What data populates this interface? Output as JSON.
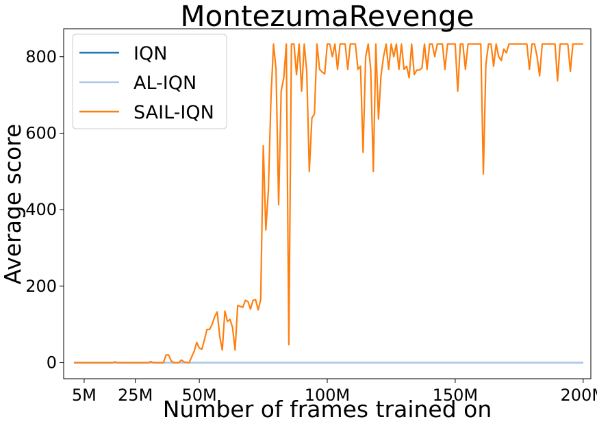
{
  "chart_data": {
    "type": "line",
    "title": "MontezumaRevenge",
    "xlabel": "Number of frames trained on",
    "ylabel": "Average score",
    "xlim": [
      -3,
      203
    ],
    "ylim": [
      -42,
      873
    ],
    "x_ticks": [
      {
        "value": 5,
        "label": "5M"
      },
      {
        "value": 25,
        "label": "25M"
      },
      {
        "value": 50,
        "label": "50M"
      },
      {
        "value": 100,
        "label": "100M"
      },
      {
        "value": 150,
        "label": "150M"
      },
      {
        "value": 200,
        "label": "200M"
      }
    ],
    "y_ticks": [
      {
        "value": 0,
        "label": "0"
      },
      {
        "value": 200,
        "label": "200"
      },
      {
        "value": 400,
        "label": "400"
      },
      {
        "value": 600,
        "label": "600"
      },
      {
        "value": 800,
        "label": "800"
      }
    ],
    "grid": false,
    "legend_position": "top-left",
    "series": [
      {
        "name": "IQN",
        "color": "#1f77b4",
        "points": [
          [
            1,
            0
          ],
          [
            200,
            0
          ]
        ]
      },
      {
        "name": "AL-IQN",
        "color": "#aec7e8",
        "points": [
          [
            1,
            0
          ],
          [
            200,
            0
          ]
        ]
      },
      {
        "name": "SAIL-IQN",
        "color": "#ff7f0e",
        "points": [
          [
            1,
            0
          ],
          [
            16,
            0
          ],
          [
            17,
            2
          ],
          [
            18,
            0
          ],
          [
            30,
            0
          ],
          [
            31,
            3
          ],
          [
            32,
            0
          ],
          [
            36,
            0
          ],
          [
            37,
            20
          ],
          [
            38,
            20
          ],
          [
            39,
            5
          ],
          [
            40,
            0
          ],
          [
            42,
            0
          ],
          [
            43,
            7
          ],
          [
            44,
            2
          ],
          [
            45,
            1
          ],
          [
            46,
            0
          ],
          [
            47,
            15
          ],
          [
            48,
            30
          ],
          [
            49,
            53
          ],
          [
            50,
            38
          ],
          [
            51,
            35
          ],
          [
            52,
            60
          ],
          [
            53,
            87
          ],
          [
            54,
            87
          ],
          [
            55,
            100
          ],
          [
            56,
            120
          ],
          [
            57,
            133
          ],
          [
            58,
            68
          ],
          [
            59,
            33
          ],
          [
            60,
            135
          ],
          [
            61,
            108
          ],
          [
            62,
            113
          ],
          [
            63,
            92
          ],
          [
            64,
            33
          ],
          [
            65,
            150
          ],
          [
            66,
            147
          ],
          [
            67,
            145
          ],
          [
            68,
            163
          ],
          [
            69,
            160
          ],
          [
            70,
            140
          ],
          [
            71,
            163
          ],
          [
            72,
            165
          ],
          [
            73,
            138
          ],
          [
            74,
            165
          ],
          [
            75,
            567
          ],
          [
            76,
            347
          ],
          [
            77,
            450
          ],
          [
            78,
            692
          ],
          [
            79,
            833
          ],
          [
            80,
            767
          ],
          [
            81,
            413
          ],
          [
            82,
            710
          ],
          [
            83,
            745
          ],
          [
            84,
            833
          ],
          [
            85,
            47
          ],
          [
            86,
            833
          ],
          [
            87,
            833
          ],
          [
            88,
            753
          ],
          [
            89,
            833
          ],
          [
            90,
            710
          ],
          [
            91,
            833
          ],
          [
            92,
            760
          ],
          [
            93,
            500
          ],
          [
            94,
            640
          ],
          [
            95,
            650
          ],
          [
            96,
            833
          ],
          [
            97,
            767
          ],
          [
            98,
            760
          ],
          [
            99,
            755
          ],
          [
            100,
            833
          ],
          [
            101,
            833
          ],
          [
            102,
            800
          ],
          [
            103,
            833
          ],
          [
            104,
            767
          ],
          [
            105,
            833
          ],
          [
            106,
            833
          ],
          [
            107,
            833
          ],
          [
            108,
            767
          ],
          [
            109,
            833
          ],
          [
            110,
            833
          ],
          [
            111,
            833
          ],
          [
            112,
            767
          ],
          [
            113,
            775
          ],
          [
            114,
            550
          ],
          [
            115,
            800
          ],
          [
            116,
            833
          ],
          [
            117,
            767
          ],
          [
            118,
            500
          ],
          [
            119,
            833
          ],
          [
            120,
            637
          ],
          [
            121,
            750
          ],
          [
            122,
            800
          ],
          [
            123,
            833
          ],
          [
            124,
            767
          ],
          [
            125,
            833
          ],
          [
            126,
            800
          ],
          [
            127,
            833
          ],
          [
            128,
            767
          ],
          [
            129,
            833
          ],
          [
            130,
            767
          ],
          [
            131,
            775
          ],
          [
            132,
            745
          ],
          [
            133,
            833
          ],
          [
            134,
            753
          ],
          [
            135,
            765
          ],
          [
            136,
            765
          ],
          [
            137,
            770
          ],
          [
            138,
            833
          ],
          [
            139,
            767
          ],
          [
            140,
            833
          ],
          [
            141,
            833
          ],
          [
            142,
            800
          ],
          [
            143,
            833
          ],
          [
            144,
            833
          ],
          [
            145,
            833
          ],
          [
            146,
            767
          ],
          [
            147,
            833
          ],
          [
            148,
            833
          ],
          [
            149,
            833
          ],
          [
            150,
            833
          ],
          [
            151,
            710
          ],
          [
            152,
            833
          ],
          [
            153,
            833
          ],
          [
            154,
            767
          ],
          [
            155,
            833
          ],
          [
            156,
            833
          ],
          [
            157,
            833
          ],
          [
            158,
            833
          ],
          [
            159,
            833
          ],
          [
            160,
            833
          ],
          [
            161,
            493
          ],
          [
            162,
            780
          ],
          [
            163,
            833
          ],
          [
            164,
            833
          ],
          [
            165,
            775
          ],
          [
            166,
            833
          ],
          [
            167,
            800
          ],
          [
            168,
            790
          ],
          [
            169,
            820
          ],
          [
            170,
            810
          ],
          [
            171,
            833
          ],
          [
            172,
            833
          ],
          [
            173,
            833
          ],
          [
            174,
            833
          ],
          [
            175,
            833
          ],
          [
            176,
            833
          ],
          [
            177,
            833
          ],
          [
            178,
            833
          ],
          [
            179,
            767
          ],
          [
            180,
            833
          ],
          [
            181,
            833
          ],
          [
            182,
            800
          ],
          [
            183,
            750
          ],
          [
            184,
            833
          ],
          [
            185,
            833
          ],
          [
            186,
            833
          ],
          [
            187,
            833
          ],
          [
            188,
            833
          ],
          [
            189,
            833
          ],
          [
            190,
            737
          ],
          [
            191,
            833
          ],
          [
            192,
            833
          ],
          [
            193,
            833
          ],
          [
            194,
            833
          ],
          [
            195,
            762
          ],
          [
            196,
            833
          ],
          [
            197,
            833
          ],
          [
            198,
            833
          ],
          [
            199,
            833
          ],
          [
            200,
            833
          ]
        ]
      }
    ]
  }
}
